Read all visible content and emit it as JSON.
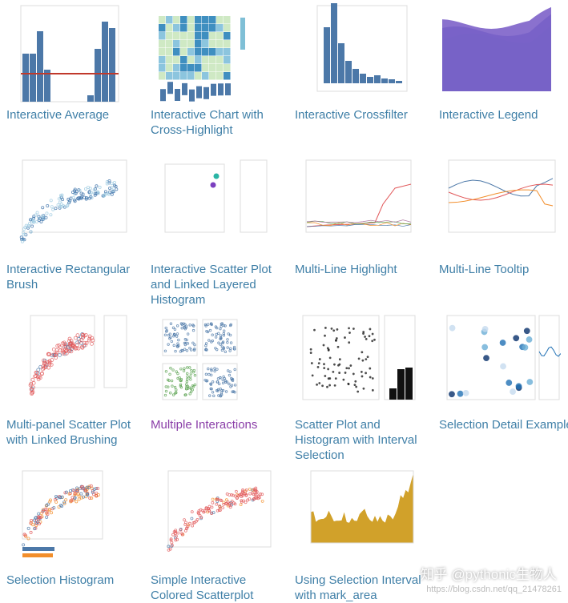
{
  "gallery": {
    "items": [
      {
        "title": "Interactive Average"
      },
      {
        "title": "Interactive Chart with Cross-Highlight"
      },
      {
        "title": "Interactive Crossfilter"
      },
      {
        "title": "Interactive Legend"
      },
      {
        "title": "Interactive Rectangular Brush"
      },
      {
        "title": "Interactive Scatter Plot and Linked Layered Histogram"
      },
      {
        "title": "Multi-Line Highlight"
      },
      {
        "title": "Multi-Line Tooltip"
      },
      {
        "title": "Multi-panel Scatter Plot with Linked Brushing"
      },
      {
        "title": "Multiple Interactions",
        "visited": true
      },
      {
        "title": "Scatter Plot and Histogram with Interval Selection"
      },
      {
        "title": "Selection Detail Example"
      },
      {
        "title": "Selection Histogram"
      },
      {
        "title": "Simple Interactive Colored Scatterplot"
      },
      {
        "title": "Using Selection Interval with mark_area"
      }
    ]
  },
  "watermark": {
    "text": "知乎 @pythonic生物人",
    "url": "https://blog.csdn.net/qq_21478261"
  }
}
